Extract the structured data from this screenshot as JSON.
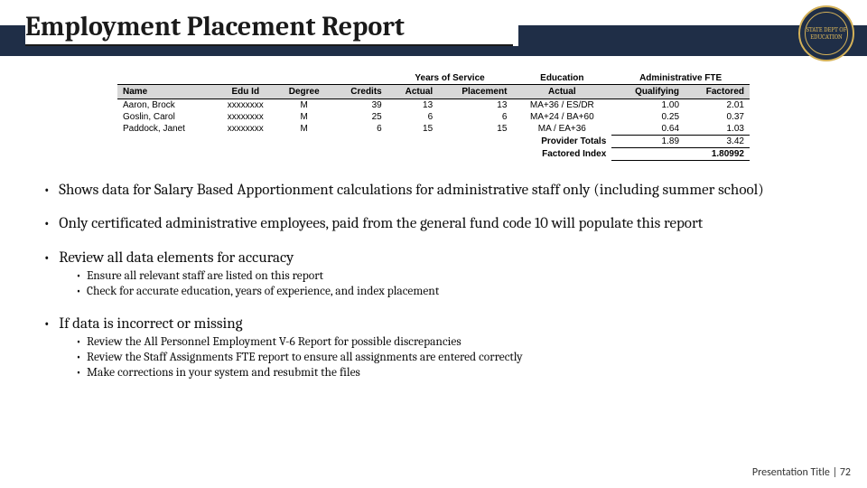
{
  "colors": {
    "header_band": "#1f2e47",
    "logo_gold": "#d4b158",
    "table_header_bg": "#d8d8d8",
    "text": "#111111",
    "background": "#ffffff"
  },
  "title": "Employment Placement Report",
  "logo": {
    "label": "STATE DEPT OF EDUCATION"
  },
  "table": {
    "group_headers": {
      "years_of_service": "Years of Service",
      "education": "Education",
      "admin_fte": "Administrative FTE"
    },
    "columns": [
      "Name",
      "Edu Id",
      "Degree",
      "Credits",
      "Actual",
      "Placement",
      "Actual",
      "Qualifying",
      "Factored"
    ],
    "rows": [
      {
        "name": "Aaron, Brock",
        "edu_id": "xxxxxxxx",
        "degree": "M",
        "credits": "39",
        "yos_actual": "13",
        "yos_place": "13",
        "edu_actual": "MA+36 / ES/DR",
        "qualifying": "1.00",
        "factored": "2.01"
      },
      {
        "name": "Goslin, Carol",
        "edu_id": "xxxxxxxx",
        "degree": "M",
        "credits": "25",
        "yos_actual": "6",
        "yos_place": "6",
        "edu_actual": "MA+24 / BA+60",
        "qualifying": "0.25",
        "factored": "0.37"
      },
      {
        "name": "Paddock, Janet",
        "edu_id": "xxxxxxxx",
        "degree": "M",
        "credits": "6",
        "yos_actual": "15",
        "yos_place": "15",
        "edu_actual": "MA / EA+36",
        "qualifying": "0.64",
        "factored": "1.03"
      }
    ],
    "provider_totals": {
      "label": "Provider Totals",
      "qualifying": "1.89",
      "factored": "3.42"
    },
    "factored_index": {
      "label": "Factored Index",
      "value": "1.80992"
    }
  },
  "bullets": [
    {
      "text": "Shows data for Salary Based Apportionment calculations for administrative staff only (including summer school)",
      "sub": []
    },
    {
      "text": "Only certificated administrative employees, paid from the general fund code 10 will populate this report",
      "sub": []
    },
    {
      "text": "Review all data elements for accuracy",
      "sub": [
        "Ensure all relevant staff are listed on this report",
        "Check for accurate education, years of experience, and index placement"
      ]
    },
    {
      "text": "If data is incorrect or missing",
      "sub": [
        "Review the All Personnel Employment V-6 Report for possible discrepancies",
        "Review the Staff Assignments FTE report to ensure all assignments are entered correctly",
        "Make corrections in your system and resubmit the files"
      ]
    }
  ],
  "footer": {
    "title": "Presentation Title",
    "sep": " | ",
    "page": "72"
  }
}
